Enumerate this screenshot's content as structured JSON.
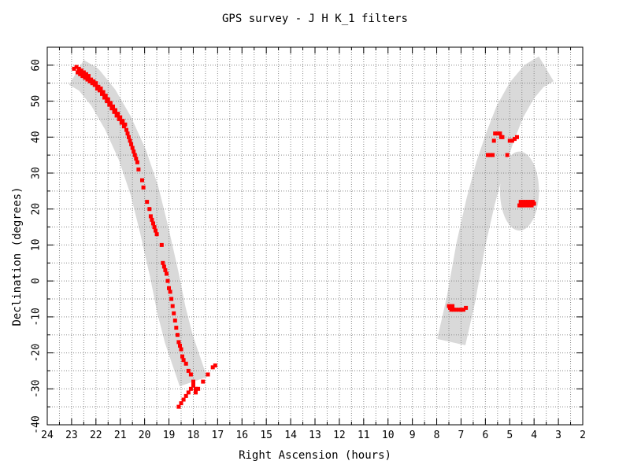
{
  "chart_data": {
    "type": "scatter",
    "title": "GPS survey - J H K_1  filters",
    "xlabel": "Right Ascension (hours)",
    "ylabel": "Declination (degrees)",
    "xlim": [
      24,
      2
    ],
    "ylim": [
      -40,
      65
    ],
    "x_ticks": [
      "24",
      "23",
      "22",
      "21",
      "20",
      "19",
      "18",
      "17",
      "16",
      "15",
      "14",
      "13",
      "12",
      "11",
      "10",
      "9",
      "8",
      "7",
      "6",
      "5",
      "4",
      "3",
      "2"
    ],
    "y_ticks": [
      "60",
      "50",
      "40",
      "30",
      "20",
      "10",
      "0",
      "-10",
      "-20",
      "-30",
      "-40"
    ],
    "grid": true,
    "x_reversed": true,
    "colors": {
      "points": "#ff0000",
      "band": "#d9d9d9",
      "grid": "#888888"
    },
    "regions": [
      {
        "name": "galactic-plane-band-left",
        "path": [
          [
            22.8,
            58
          ],
          [
            22.3,
            56
          ],
          [
            21.7,
            51
          ],
          [
            21.1,
            44
          ],
          [
            20.5,
            35
          ],
          [
            20.0,
            25
          ],
          [
            19.6,
            14
          ],
          [
            19.2,
            2
          ],
          [
            18.9,
            -8
          ],
          [
            18.6,
            -16
          ],
          [
            18.3,
            -22
          ],
          [
            18.0,
            -28
          ]
        ],
        "width_deg": 8
      },
      {
        "name": "galactic-plane-band-right",
        "path": [
          [
            7.4,
            -17
          ],
          [
            7.0,
            -5
          ],
          [
            6.6,
            10
          ],
          [
            6.2,
            22
          ],
          [
            5.8,
            32
          ],
          [
            5.4,
            40
          ],
          [
            5.0,
            47
          ],
          [
            4.5,
            53
          ],
          [
            4.0,
            57
          ],
          [
            3.5,
            59
          ]
        ],
        "width_deg": 8
      },
      {
        "name": "ellipse-region",
        "center": [
          4.6,
          25
        ],
        "rx_hours": 0.8,
        "ry_deg": 11
      }
    ],
    "series": [
      {
        "points": [
          [
            22.9,
            59
          ],
          [
            22.8,
            59.5
          ],
          [
            22.75,
            58
          ],
          [
            22.7,
            59
          ],
          [
            22.65,
            57.5
          ],
          [
            22.6,
            58.5
          ],
          [
            22.55,
            57
          ],
          [
            22.5,
            58
          ],
          [
            22.45,
            56.5
          ],
          [
            22.4,
            57.5
          ],
          [
            22.35,
            56
          ],
          [
            22.3,
            57
          ],
          [
            22.25,
            55.5
          ],
          [
            22.2,
            56
          ],
          [
            22.15,
            55
          ],
          [
            22.1,
            55.5
          ],
          [
            22.05,
            54.5
          ],
          [
            22.0,
            55
          ],
          [
            21.95,
            53.5
          ],
          [
            21.9,
            54
          ],
          [
            21.85,
            53
          ],
          [
            21.8,
            53.5
          ],
          [
            21.75,
            52
          ],
          [
            21.7,
            52.5
          ],
          [
            21.65,
            51
          ],
          [
            21.6,
            51.5
          ],
          [
            21.55,
            50
          ],
          [
            21.5,
            50.5
          ],
          [
            21.45,
            49
          ],
          [
            21.4,
            49.5
          ],
          [
            21.35,
            48
          ],
          [
            21.3,
            48.5
          ],
          [
            21.25,
            47
          ],
          [
            21.2,
            47.5
          ],
          [
            21.15,
            46
          ],
          [
            21.1,
            46.5
          ],
          [
            21.05,
            45
          ],
          [
            21.0,
            45.5
          ],
          [
            20.95,
            44
          ],
          [
            20.9,
            44.5
          ],
          [
            20.85,
            43
          ],
          [
            20.8,
            43.5
          ],
          [
            20.75,
            42
          ],
          [
            20.7,
            41
          ],
          [
            20.65,
            40
          ],
          [
            20.6,
            39
          ],
          [
            20.55,
            38
          ],
          [
            20.5,
            37
          ],
          [
            20.45,
            36
          ],
          [
            20.4,
            35
          ],
          [
            20.35,
            34
          ],
          [
            20.3,
            33
          ],
          [
            20.25,
            31
          ],
          [
            20.1,
            28
          ],
          [
            20.05,
            26
          ],
          [
            19.9,
            22
          ],
          [
            19.8,
            20
          ],
          [
            19.75,
            18
          ],
          [
            19.7,
            17
          ],
          [
            19.65,
            16
          ],
          [
            19.6,
            15
          ],
          [
            19.55,
            14
          ],
          [
            19.5,
            13
          ],
          [
            19.3,
            10
          ],
          [
            19.25,
            5
          ],
          [
            19.2,
            4
          ],
          [
            19.15,
            3
          ],
          [
            19.1,
            2
          ],
          [
            19.05,
            0
          ],
          [
            19.0,
            -2
          ],
          [
            18.95,
            -3
          ],
          [
            18.9,
            -5
          ],
          [
            18.85,
            -7
          ],
          [
            18.8,
            -9
          ],
          [
            18.75,
            -11
          ],
          [
            18.7,
            -13
          ],
          [
            18.65,
            -15
          ],
          [
            18.6,
            -17
          ],
          [
            18.55,
            -18
          ],
          [
            18.5,
            -19
          ],
          [
            18.45,
            -21
          ],
          [
            18.4,
            -22
          ],
          [
            18.3,
            -23
          ],
          [
            18.2,
            -25
          ],
          [
            18.1,
            -26
          ],
          [
            18.0,
            -28
          ],
          [
            17.9,
            -30
          ],
          [
            17.8,
            -30
          ],
          [
            17.6,
            -28
          ],
          [
            17.4,
            -26
          ],
          [
            17.2,
            -24
          ],
          [
            17.1,
            -23.5
          ],
          [
            18.6,
            -35
          ],
          [
            18.5,
            -34
          ],
          [
            18.4,
            -33
          ],
          [
            18.3,
            -32
          ],
          [
            18.2,
            -31
          ],
          [
            18.1,
            -30
          ],
          [
            18.0,
            -29
          ],
          [
            17.9,
            -31
          ],
          [
            7.5,
            -7
          ],
          [
            7.45,
            -7.5
          ],
          [
            7.4,
            -8
          ],
          [
            7.35,
            -7
          ],
          [
            7.3,
            -8
          ],
          [
            7.2,
            -8
          ],
          [
            7.1,
            -8
          ],
          [
            7.0,
            -8
          ],
          [
            6.9,
            -8
          ],
          [
            6.8,
            -7.5
          ],
          [
            5.9,
            35
          ],
          [
            5.8,
            35
          ],
          [
            5.7,
            35
          ],
          [
            5.65,
            39
          ],
          [
            5.6,
            41
          ],
          [
            5.5,
            41
          ],
          [
            5.4,
            41
          ],
          [
            5.35,
            40
          ],
          [
            5.3,
            40
          ],
          [
            5.1,
            35
          ],
          [
            5.0,
            39
          ],
          [
            4.9,
            39
          ],
          [
            4.8,
            39.5
          ],
          [
            4.7,
            40
          ],
          [
            4.6,
            21
          ],
          [
            4.55,
            22
          ],
          [
            4.5,
            21
          ],
          [
            4.45,
            22
          ],
          [
            4.4,
            21
          ],
          [
            4.35,
            22
          ],
          [
            4.3,
            21
          ],
          [
            4.25,
            22
          ],
          [
            4.2,
            21
          ],
          [
            4.15,
            22
          ],
          [
            4.1,
            21
          ],
          [
            4.05,
            22
          ],
          [
            4.0,
            21.5
          ]
        ]
      }
    ]
  }
}
